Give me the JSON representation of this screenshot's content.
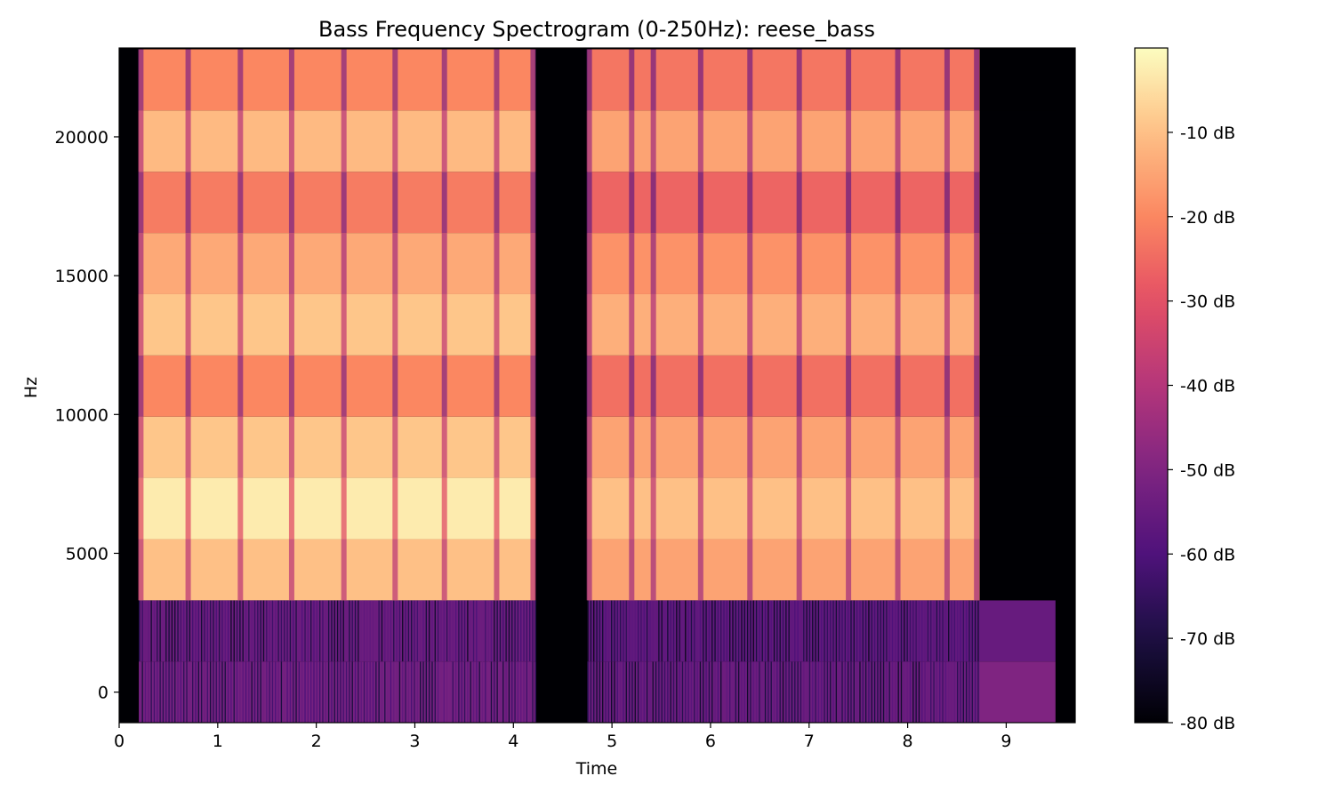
{
  "chart_data": {
    "type": "heatmap",
    "title": "Bass Frequency Spectrogram (0-250Hz): reese_bass",
    "xlabel": "Time",
    "ylabel": "Hz",
    "xlim": [
      0,
      9.7
    ],
    "ylim": [
      -1100,
      23200
    ],
    "x_ticks": [
      0,
      1,
      2,
      3,
      4,
      5,
      6,
      7,
      8,
      9
    ],
    "y_ticks": [
      0,
      5000,
      10000,
      15000,
      20000
    ],
    "colormap": "magma",
    "colorbar": {
      "ticks": [
        -10,
        -20,
        -30,
        -40,
        -50,
        -60,
        -70,
        -80
      ],
      "tick_labels": [
        "-10 dB",
        "-20 dB",
        "-30 dB",
        "-40 dB",
        "-50 dB",
        "-60 dB",
        "-70 dB",
        "-80 dB"
      ],
      "range": [
        -80,
        0
      ]
    },
    "bin_centers_hz": [
      0,
      2205,
      4410,
      6615,
      8820,
      11025,
      13230,
      15435,
      17640,
      19845,
      22050
    ],
    "segments": [
      {
        "start": 0.2,
        "end": 4.22,
        "band_db": [
          -52,
          -54,
          -10,
          -3,
          -9,
          -20,
          -9,
          -14,
          -22,
          -11,
          -20
        ],
        "notch_times": [
          0.22,
          0.7,
          1.23,
          1.75,
          2.28,
          2.8,
          3.3,
          3.83,
          4.2
        ]
      },
      {
        "start": 4.75,
        "end": 8.73,
        "band_db": [
          -54,
          -56,
          -15,
          -10,
          -15,
          -24,
          -13,
          -18,
          -26,
          -15,
          -23
        ],
        "notch_times": [
          4.77,
          5.2,
          5.42,
          5.9,
          6.4,
          6.9,
          7.4,
          7.9,
          8.4,
          8.7
        ]
      },
      {
        "start": 8.73,
        "end": 9.5,
        "band_db": [
          -50,
          -55,
          -80,
          -80,
          -80,
          -80,
          -80,
          -80,
          -80,
          -80,
          -80
        ],
        "notch_times": []
      }
    ]
  }
}
